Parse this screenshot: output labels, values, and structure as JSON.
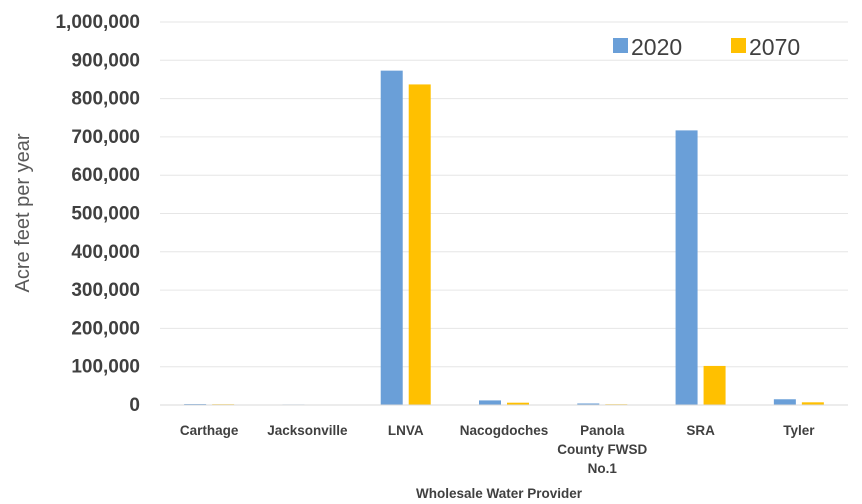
{
  "chart_data": {
    "type": "bar",
    "title": "",
    "xlabel": "Wholesale Water Provider",
    "ylabel": "Acre feet per year",
    "ylim": [
      0,
      1000000
    ],
    "yticks": [
      "0",
      "100,000",
      "200,000",
      "300,000",
      "400,000",
      "500,000",
      "600,000",
      "700,000",
      "800,000",
      "900,000",
      "1,000,000"
    ],
    "categories": [
      "Carthage",
      "Jacksonville",
      "LNVA",
      "Nacogdoches",
      "Panola County FWSD No.1",
      "SRA",
      "Tyler"
    ],
    "category_lines": [
      [
        "Carthage"
      ],
      [
        "Jacksonville"
      ],
      [
        "LNVA"
      ],
      [
        "Nacogdoches"
      ],
      [
        "Panola",
        "County FWSD",
        "No.1"
      ],
      [
        "SRA"
      ],
      [
        "Tyler"
      ]
    ],
    "series": [
      {
        "name": "2020",
        "color": "#6a9fd8",
        "values": [
          2500,
          1500,
          873000,
          12000,
          4000,
          717000,
          15000
        ]
      },
      {
        "name": "2070",
        "color": "#ffc000",
        "values": [
          2000,
          1000,
          837000,
          6000,
          2000,
          102000,
          7000
        ]
      }
    ],
    "grid": true,
    "legend_position": "top-right"
  }
}
